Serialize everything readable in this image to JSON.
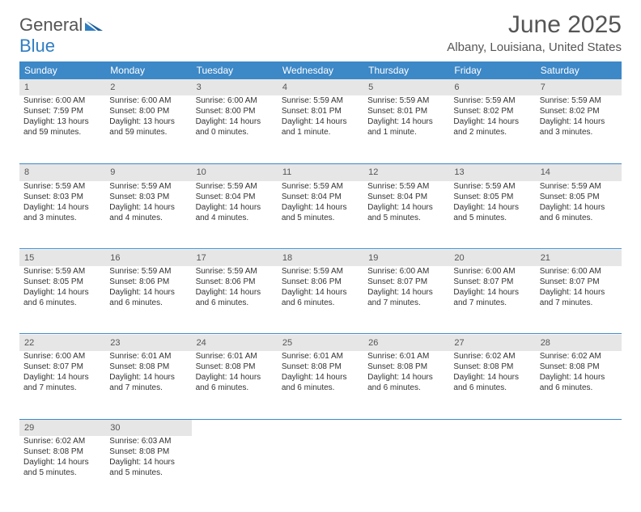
{
  "brand": {
    "name1": "General",
    "name2": "Blue"
  },
  "title": "June 2025",
  "location": "Albany, Louisiana, United States",
  "colors": {
    "header_bg": "#3d88c7",
    "header_fg": "#ffffff",
    "daynum_bg": "#e6e6e6",
    "rule": "#3d88c7",
    "text": "#333333",
    "brand_accent": "#2f7ec2"
  },
  "weekdays": [
    "Sunday",
    "Monday",
    "Tuesday",
    "Wednesday",
    "Thursday",
    "Friday",
    "Saturday"
  ],
  "weeks": [
    [
      {
        "n": "1",
        "sr": "Sunrise: 6:00 AM",
        "ss": "Sunset: 7:59 PM",
        "d1": "Daylight: 13 hours",
        "d2": "and 59 minutes."
      },
      {
        "n": "2",
        "sr": "Sunrise: 6:00 AM",
        "ss": "Sunset: 8:00 PM",
        "d1": "Daylight: 13 hours",
        "d2": "and 59 minutes."
      },
      {
        "n": "3",
        "sr": "Sunrise: 6:00 AM",
        "ss": "Sunset: 8:00 PM",
        "d1": "Daylight: 14 hours",
        "d2": "and 0 minutes."
      },
      {
        "n": "4",
        "sr": "Sunrise: 5:59 AM",
        "ss": "Sunset: 8:01 PM",
        "d1": "Daylight: 14 hours",
        "d2": "and 1 minute."
      },
      {
        "n": "5",
        "sr": "Sunrise: 5:59 AM",
        "ss": "Sunset: 8:01 PM",
        "d1": "Daylight: 14 hours",
        "d2": "and 1 minute."
      },
      {
        "n": "6",
        "sr": "Sunrise: 5:59 AM",
        "ss": "Sunset: 8:02 PM",
        "d1": "Daylight: 14 hours",
        "d2": "and 2 minutes."
      },
      {
        "n": "7",
        "sr": "Sunrise: 5:59 AM",
        "ss": "Sunset: 8:02 PM",
        "d1": "Daylight: 14 hours",
        "d2": "and 3 minutes."
      }
    ],
    [
      {
        "n": "8",
        "sr": "Sunrise: 5:59 AM",
        "ss": "Sunset: 8:03 PM",
        "d1": "Daylight: 14 hours",
        "d2": "and 3 minutes."
      },
      {
        "n": "9",
        "sr": "Sunrise: 5:59 AM",
        "ss": "Sunset: 8:03 PM",
        "d1": "Daylight: 14 hours",
        "d2": "and 4 minutes."
      },
      {
        "n": "10",
        "sr": "Sunrise: 5:59 AM",
        "ss": "Sunset: 8:04 PM",
        "d1": "Daylight: 14 hours",
        "d2": "and 4 minutes."
      },
      {
        "n": "11",
        "sr": "Sunrise: 5:59 AM",
        "ss": "Sunset: 8:04 PM",
        "d1": "Daylight: 14 hours",
        "d2": "and 5 minutes."
      },
      {
        "n": "12",
        "sr": "Sunrise: 5:59 AM",
        "ss": "Sunset: 8:04 PM",
        "d1": "Daylight: 14 hours",
        "d2": "and 5 minutes."
      },
      {
        "n": "13",
        "sr": "Sunrise: 5:59 AM",
        "ss": "Sunset: 8:05 PM",
        "d1": "Daylight: 14 hours",
        "d2": "and 5 minutes."
      },
      {
        "n": "14",
        "sr": "Sunrise: 5:59 AM",
        "ss": "Sunset: 8:05 PM",
        "d1": "Daylight: 14 hours",
        "d2": "and 6 minutes."
      }
    ],
    [
      {
        "n": "15",
        "sr": "Sunrise: 5:59 AM",
        "ss": "Sunset: 8:05 PM",
        "d1": "Daylight: 14 hours",
        "d2": "and 6 minutes."
      },
      {
        "n": "16",
        "sr": "Sunrise: 5:59 AM",
        "ss": "Sunset: 8:06 PM",
        "d1": "Daylight: 14 hours",
        "d2": "and 6 minutes."
      },
      {
        "n": "17",
        "sr": "Sunrise: 5:59 AM",
        "ss": "Sunset: 8:06 PM",
        "d1": "Daylight: 14 hours",
        "d2": "and 6 minutes."
      },
      {
        "n": "18",
        "sr": "Sunrise: 5:59 AM",
        "ss": "Sunset: 8:06 PM",
        "d1": "Daylight: 14 hours",
        "d2": "and 6 minutes."
      },
      {
        "n": "19",
        "sr": "Sunrise: 6:00 AM",
        "ss": "Sunset: 8:07 PM",
        "d1": "Daylight: 14 hours",
        "d2": "and 7 minutes."
      },
      {
        "n": "20",
        "sr": "Sunrise: 6:00 AM",
        "ss": "Sunset: 8:07 PM",
        "d1": "Daylight: 14 hours",
        "d2": "and 7 minutes."
      },
      {
        "n": "21",
        "sr": "Sunrise: 6:00 AM",
        "ss": "Sunset: 8:07 PM",
        "d1": "Daylight: 14 hours",
        "d2": "and 7 minutes."
      }
    ],
    [
      {
        "n": "22",
        "sr": "Sunrise: 6:00 AM",
        "ss": "Sunset: 8:07 PM",
        "d1": "Daylight: 14 hours",
        "d2": "and 7 minutes."
      },
      {
        "n": "23",
        "sr": "Sunrise: 6:01 AM",
        "ss": "Sunset: 8:08 PM",
        "d1": "Daylight: 14 hours",
        "d2": "and 7 minutes."
      },
      {
        "n": "24",
        "sr": "Sunrise: 6:01 AM",
        "ss": "Sunset: 8:08 PM",
        "d1": "Daylight: 14 hours",
        "d2": "and 6 minutes."
      },
      {
        "n": "25",
        "sr": "Sunrise: 6:01 AM",
        "ss": "Sunset: 8:08 PM",
        "d1": "Daylight: 14 hours",
        "d2": "and 6 minutes."
      },
      {
        "n": "26",
        "sr": "Sunrise: 6:01 AM",
        "ss": "Sunset: 8:08 PM",
        "d1": "Daylight: 14 hours",
        "d2": "and 6 minutes."
      },
      {
        "n": "27",
        "sr": "Sunrise: 6:02 AM",
        "ss": "Sunset: 8:08 PM",
        "d1": "Daylight: 14 hours",
        "d2": "and 6 minutes."
      },
      {
        "n": "28",
        "sr": "Sunrise: 6:02 AM",
        "ss": "Sunset: 8:08 PM",
        "d1": "Daylight: 14 hours",
        "d2": "and 6 minutes."
      }
    ],
    [
      {
        "n": "29",
        "sr": "Sunrise: 6:02 AM",
        "ss": "Sunset: 8:08 PM",
        "d1": "Daylight: 14 hours",
        "d2": "and 5 minutes."
      },
      {
        "n": "30",
        "sr": "Sunrise: 6:03 AM",
        "ss": "Sunset: 8:08 PM",
        "d1": "Daylight: 14 hours",
        "d2": "and 5 minutes."
      },
      null,
      null,
      null,
      null,
      null
    ]
  ]
}
